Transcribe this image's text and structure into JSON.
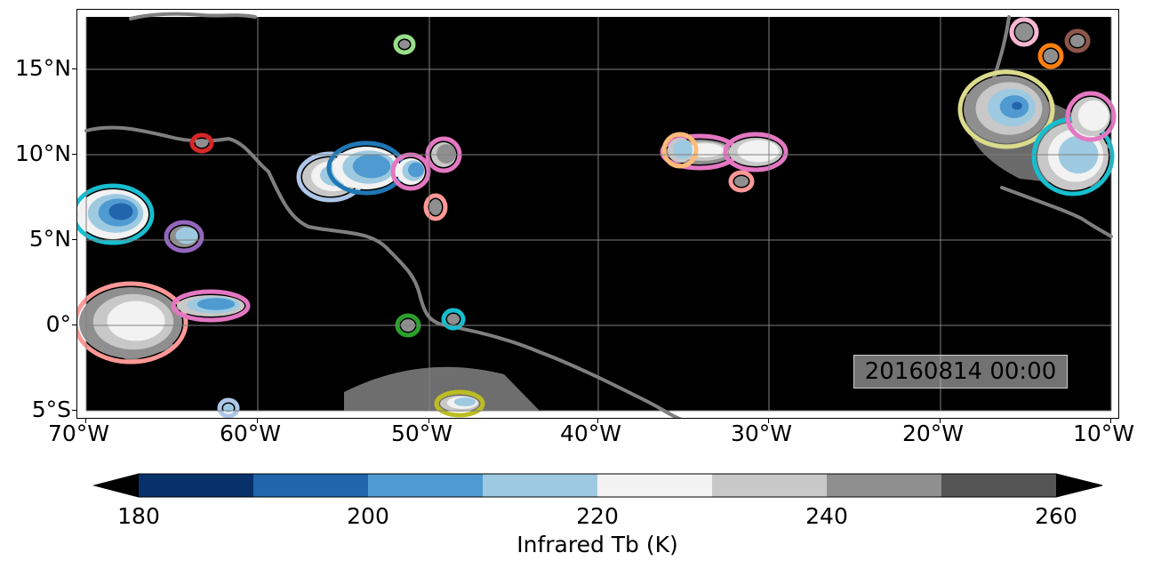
{
  "map": {
    "timestamp": "20160814 00:00",
    "background_color": "#000000",
    "coastline_color": "#7f7f7f",
    "gridline_color": "#808080",
    "lon_labels": [
      "70°W",
      "60°W",
      "50°W",
      "40°W",
      "30°W",
      "20°W",
      "10°W"
    ],
    "lat_labels": [
      "15°N",
      "10°N",
      "5°N",
      "0°",
      "5°S"
    ]
  },
  "colorbar": {
    "title": "Infrared Tb (K)",
    "tick_labels": [
      "180",
      "200",
      "220",
      "240",
      "260"
    ],
    "colors": [
      "#08306b",
      "#2166ac",
      "#4f9bd1",
      "#9ecae1",
      "#f2f2f2",
      "#c8c8c8",
      "#8f8f8f",
      "#555555"
    ],
    "extend_colors": [
      "#000000",
      "#000000"
    ]
  },
  "contour_colors": [
    "#17becf",
    "#e377c2",
    "#ff9896",
    "#1f77b4",
    "#9467bd",
    "#bcbd22",
    "#d62728",
    "#2ca02c",
    "#ffbb78",
    "#dbdb8d",
    "#ff7f0e",
    "#8c564b",
    "#98df8a",
    "#f7b6d2",
    "#aec7e8"
  ]
}
